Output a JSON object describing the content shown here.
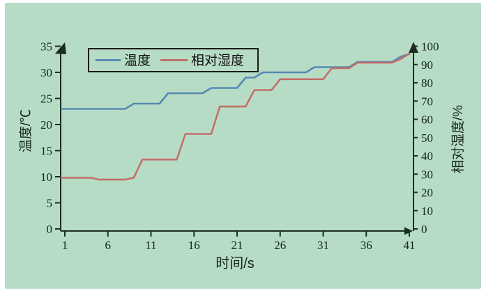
{
  "chart_data": {
    "type": "line",
    "title": "",
    "xlabel": "时间/s",
    "x": [
      1,
      2,
      3,
      4,
      5,
      6,
      7,
      8,
      9,
      10,
      11,
      12,
      13,
      14,
      15,
      16,
      17,
      18,
      19,
      20,
      21,
      22,
      23,
      24,
      25,
      26,
      27,
      28,
      29,
      30,
      31,
      32,
      33,
      34,
      35,
      36,
      37,
      38,
      39,
      40,
      41
    ],
    "x_ticks": [
      1,
      6,
      11,
      16,
      21,
      26,
      31,
      36,
      41
    ],
    "xlim": [
      1,
      41
    ],
    "grid": false,
    "legend_position": "top-left-inside",
    "left_axis": {
      "label": "温度/℃",
      "ticks": [
        0,
        5,
        10,
        15,
        20,
        25,
        30,
        35
      ],
      "lim": [
        0,
        35
      ]
    },
    "right_axis": {
      "label": "相对湿度/%",
      "ticks": [
        0,
        10,
        20,
        30,
        40,
        50,
        60,
        70,
        80,
        90,
        100
      ],
      "lim": [
        0,
        100
      ]
    },
    "series": [
      {
        "name": "温度",
        "axis": "left",
        "color": "#5589b2",
        "values": [
          23,
          23,
          23,
          23,
          23,
          23,
          23,
          23,
          24,
          24,
          24,
          24,
          26,
          26,
          26,
          26,
          26,
          27,
          27,
          27,
          27,
          29,
          29,
          30,
          30,
          30,
          30,
          30,
          30,
          31,
          31,
          31,
          31,
          31,
          32,
          32,
          32,
          32,
          32,
          33,
          33.5
        ]
      },
      {
        "name": "相对湿度",
        "axis": "right",
        "color": "#c26f68",
        "values": [
          28,
          28,
          28,
          28,
          27,
          27,
          27,
          27,
          28,
          38,
          38,
          38,
          38,
          38,
          52,
          52,
          52,
          52,
          67,
          67,
          67,
          67,
          76,
          76,
          76,
          82,
          82,
          82,
          82,
          82,
          82,
          88,
          88,
          88,
          91,
          91,
          91,
          91,
          91,
          93,
          96
        ]
      }
    ]
  },
  "colors": {
    "background": "#b7dcc6",
    "page": "#ffffff",
    "axis": "#1c2b22",
    "temperature_line": "#5589b2",
    "humidity_line": "#c26f68",
    "legend_border": "#1a1a1a"
  }
}
